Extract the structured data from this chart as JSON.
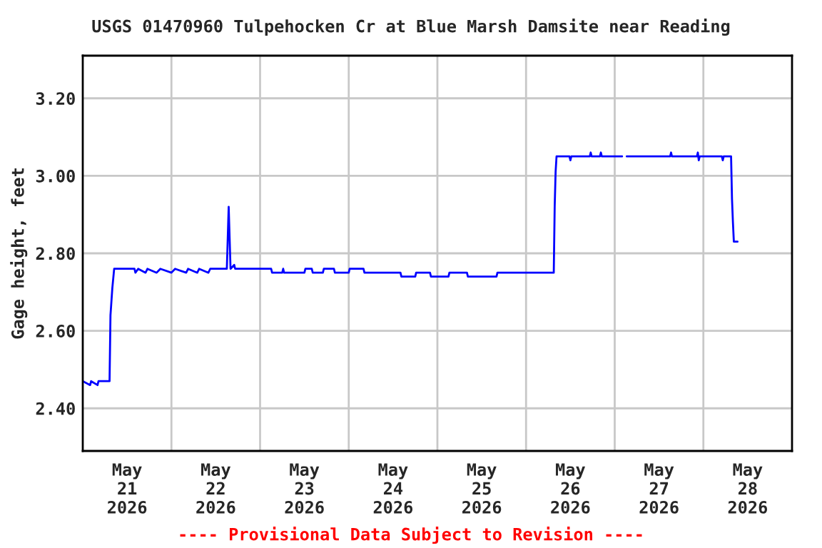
{
  "chart_data": {
    "type": "line",
    "title": "USGS 01470960 Tulpehocken Cr at Blue Marsh Damsite near Reading",
    "ylabel": "Gage height, feet",
    "annotations": [
      "---- Provisional Data Subject to Revision ----"
    ],
    "x": [
      "2026-05-21T00:00",
      "2026-05-21T02:00",
      "2026-05-21T02:15",
      "2026-05-21T04:00",
      "2026-05-21T04:15",
      "2026-05-21T07:15",
      "2026-05-21T07:30",
      "2026-05-21T08:00",
      "2026-05-21T08:30",
      "2026-05-21T14:00",
      "2026-05-21T14:15",
      "2026-05-21T15:00",
      "2026-05-21T17:00",
      "2026-05-21T17:30",
      "2026-05-21T20:00",
      "2026-05-21T21:00",
      "2026-05-22T00:00",
      "2026-05-22T01:00",
      "2026-05-22T04:00",
      "2026-05-22T04:30",
      "2026-05-22T07:00",
      "2026-05-22T07:30",
      "2026-05-22T10:00",
      "2026-05-22T10:30",
      "2026-05-22T15:00",
      "2026-05-22T15:15",
      "2026-05-22T15:30",
      "2026-05-22T15:45",
      "2026-05-22T16:00",
      "2026-05-22T17:00",
      "2026-05-22T17:15",
      "2026-05-23T03:00",
      "2026-05-23T03:15",
      "2026-05-23T06:00",
      "2026-05-23T06:15",
      "2026-05-23T06:30",
      "2026-05-23T12:00",
      "2026-05-23T12:15",
      "2026-05-23T14:00",
      "2026-05-23T14:15",
      "2026-05-23T17:00",
      "2026-05-23T17:15",
      "2026-05-23T20:00",
      "2026-05-23T20:15",
      "2026-05-24T00:00",
      "2026-05-24T00:15",
      "2026-05-24T04:00",
      "2026-05-24T04:15",
      "2026-05-24T09:00",
      "2026-05-24T14:00",
      "2026-05-24T14:15",
      "2026-05-24T18:00",
      "2026-05-24T18:15",
      "2026-05-24T22:00",
      "2026-05-24T22:15",
      "2026-05-25T03:00",
      "2026-05-25T03:15",
      "2026-05-25T08:00",
      "2026-05-25T08:15",
      "2026-05-25T14:00",
      "2026-05-25T16:00",
      "2026-05-25T16:15",
      "2026-05-26T07:30",
      "2026-05-26T07:45",
      "2026-05-26T08:00",
      "2026-05-26T08:15",
      "2026-05-26T11:45",
      "2026-05-26T12:00",
      "2026-05-26T12:15",
      "2026-05-26T17:15",
      "2026-05-26T17:30",
      "2026-05-26T17:45",
      "2026-05-26T20:00",
      "2026-05-26T20:15",
      "2026-05-26T20:30",
      "2026-05-27T02:00",
      "2026-05-27T02:30",
      "2026-05-27T03:15",
      "2026-05-27T15:00",
      "2026-05-27T15:15",
      "2026-05-27T15:30",
      "2026-05-27T22:15",
      "2026-05-27T22:30",
      "2026-05-27T22:45",
      "2026-05-27T23:00",
      "2026-05-28T05:00",
      "2026-05-28T05:15",
      "2026-05-28T05:30",
      "2026-05-28T07:30",
      "2026-05-28T07:45",
      "2026-05-28T08:00",
      "2026-05-28T08:15",
      "2026-05-28T09:15"
    ],
    "series": [
      {
        "color": "#0000ff",
        "values": [
          2.47,
          2.46,
          2.47,
          2.46,
          2.47,
          2.47,
          2.64,
          2.71,
          2.76,
          2.76,
          2.75,
          2.76,
          2.75,
          2.76,
          2.75,
          2.76,
          2.75,
          2.76,
          2.75,
          2.76,
          2.75,
          2.76,
          2.75,
          2.76,
          2.76,
          2.84,
          2.92,
          2.84,
          2.76,
          2.77,
          2.76,
          2.76,
          2.75,
          2.75,
          2.76,
          2.75,
          2.75,
          2.76,
          2.76,
          2.75,
          2.75,
          2.76,
          2.76,
          2.75,
          2.75,
          2.76,
          2.76,
          2.75,
          2.75,
          2.75,
          2.74,
          2.74,
          2.75,
          2.75,
          2.74,
          2.74,
          2.75,
          2.75,
          2.74,
          2.74,
          2.74,
          2.75,
          2.75,
          2.92,
          3.01,
          3.05,
          3.05,
          3.04,
          3.05,
          3.05,
          3.06,
          3.05,
          3.05,
          3.06,
          3.05,
          3.05,
          null,
          3.05,
          3.05,
          3.06,
          3.05,
          3.05,
          3.06,
          3.04,
          3.05,
          3.05,
          3.04,
          3.05,
          3.05,
          2.94,
          2.88,
          2.83,
          2.83
        ]
      }
    ],
    "xlim": [
      "2026-05-21T00:00",
      "2026-05-29T00:00"
    ],
    "xticks": [
      {
        "value": "2026-05-21T12:00",
        "label": "May\n21\n2026"
      },
      {
        "value": "2026-05-22T00:00",
        "label": null
      },
      {
        "value": "2026-05-22T12:00",
        "label": "May\n22\n2026"
      },
      {
        "value": "2026-05-23T00:00",
        "label": null
      },
      {
        "value": "2026-05-23T12:00",
        "label": "May\n23\n2026"
      },
      {
        "value": "2026-05-24T00:00",
        "label": null
      },
      {
        "value": "2026-05-24T12:00",
        "label": "May\n24\n2026"
      },
      {
        "value": "2026-05-25T00:00",
        "label": null
      },
      {
        "value": "2026-05-25T12:00",
        "label": "May\n25\n2026"
      },
      {
        "value": "2026-05-26T00:00",
        "label": null
      },
      {
        "value": "2026-05-26T12:00",
        "label": "May\n26\n2026"
      },
      {
        "value": "2026-05-27T00:00",
        "label": null
      },
      {
        "value": "2026-05-27T12:00",
        "label": "May\n27\n2026"
      },
      {
        "value": "2026-05-28T00:00",
        "label": null
      },
      {
        "value": "2026-05-28T12:00",
        "label": "May\n28\n2026"
      }
    ],
    "ylim": [
      2.29,
      3.31
    ],
    "yticks": [
      {
        "value": 2.4,
        "label": "2.40"
      },
      {
        "value": 2.6,
        "label": "2.60"
      },
      {
        "value": 2.8,
        "label": "2.80"
      },
      {
        "value": 3.0,
        "label": "3.00"
      },
      {
        "value": 3.2,
        "label": "3.20"
      }
    ],
    "grid": true
  }
}
